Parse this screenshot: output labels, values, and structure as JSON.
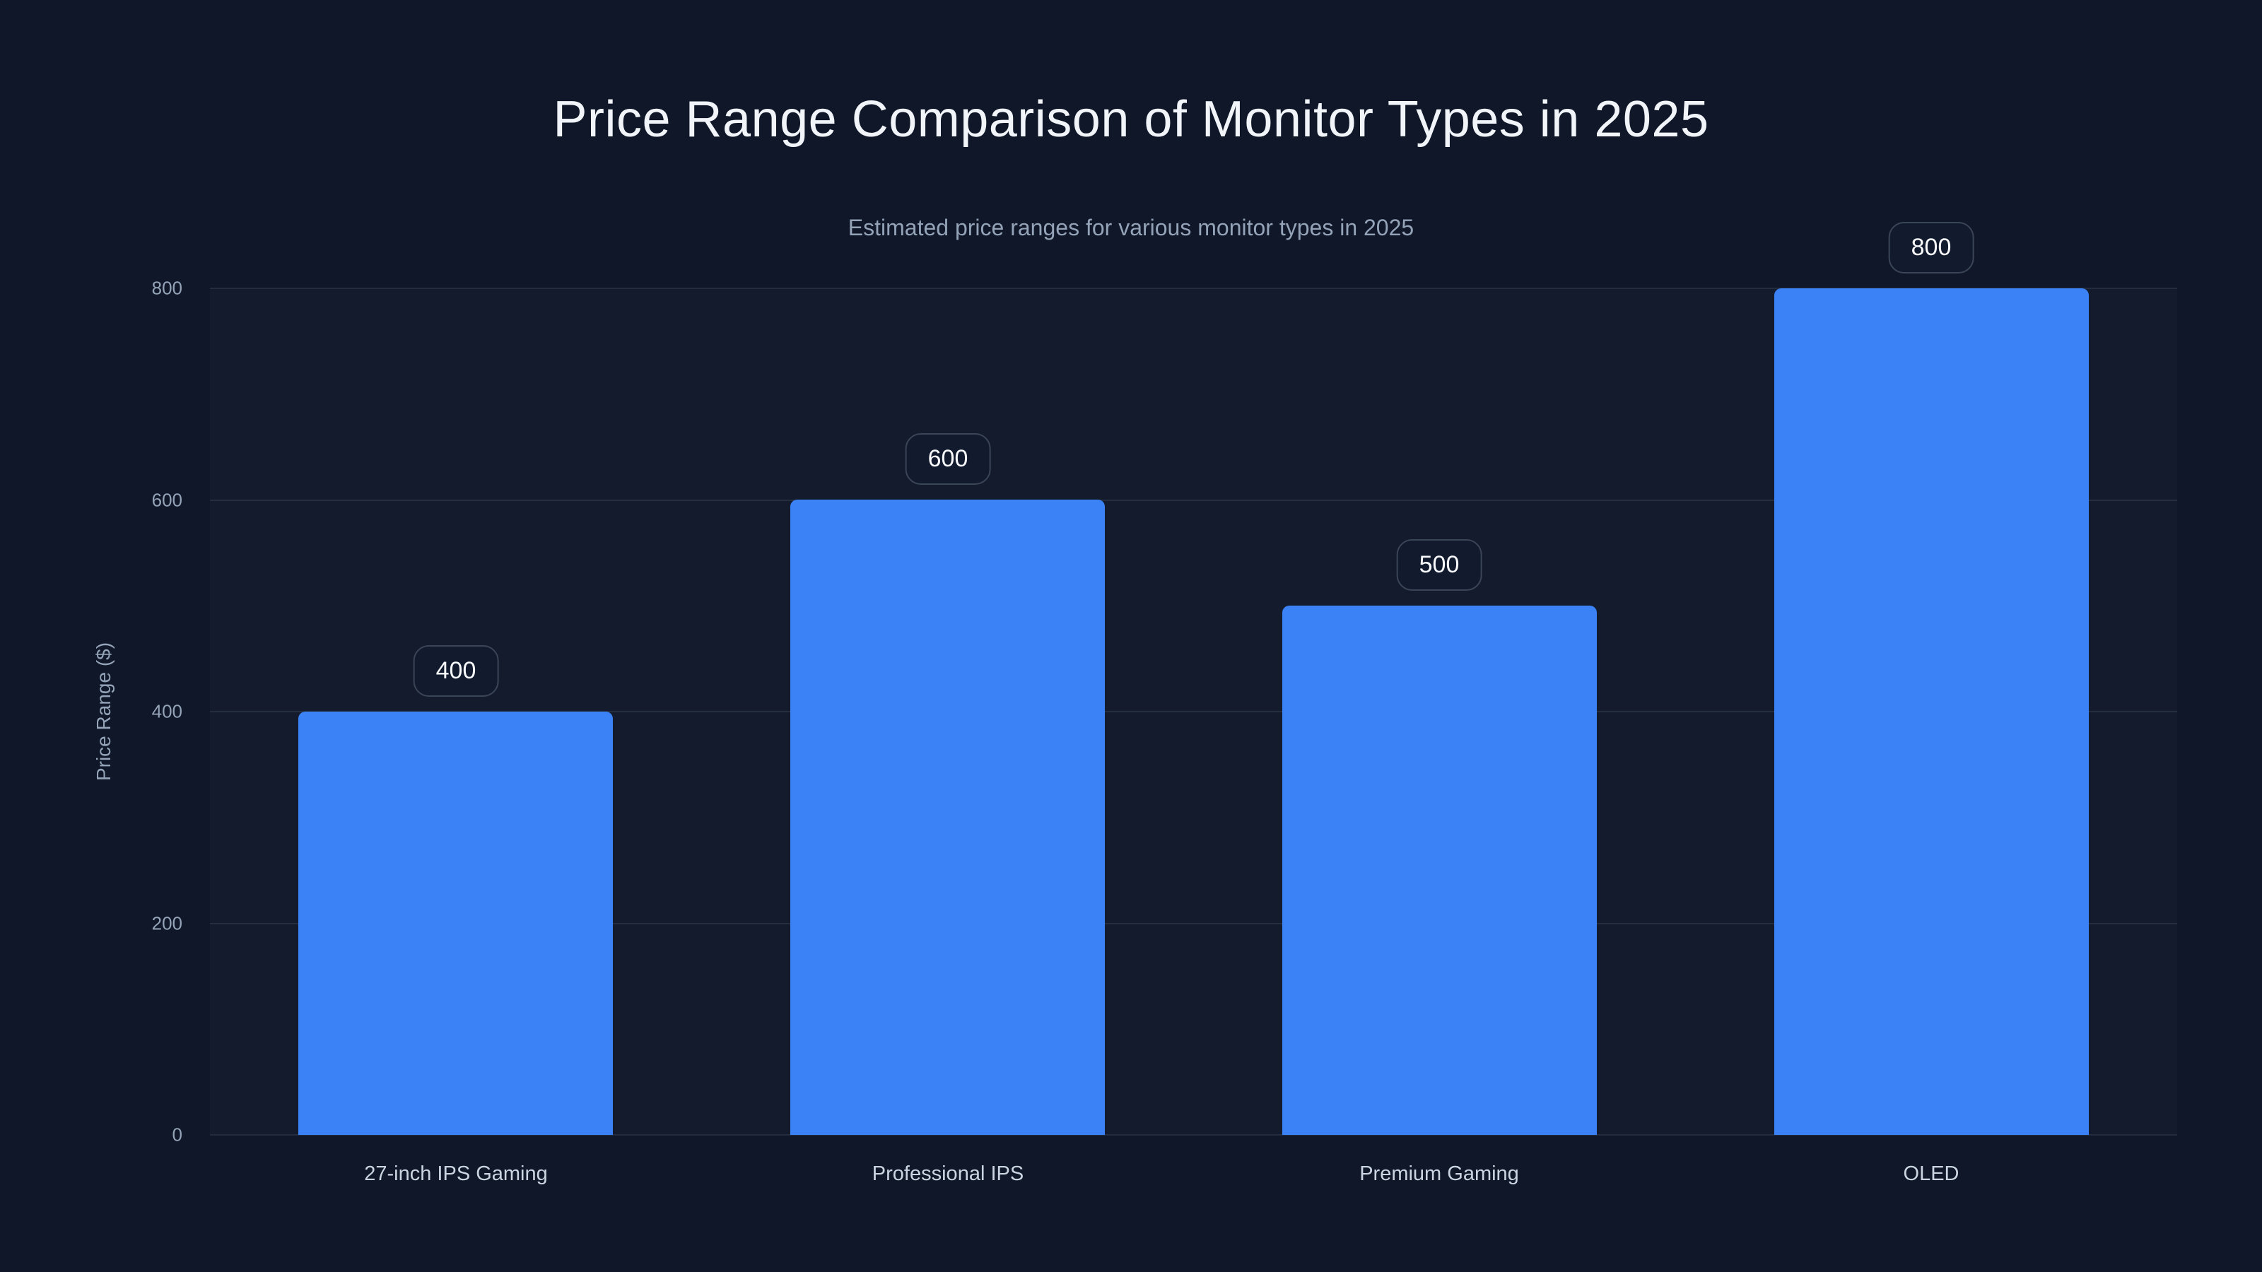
{
  "page": {
    "background_color": "#0f1728"
  },
  "chart_data": {
    "type": "bar",
    "title": "Price Range Comparison of Monitor Types in 2025",
    "subtitle": "Estimated price ranges for various monitor types in 2025",
    "xlabel": "",
    "ylabel": "Price Range ($)",
    "categories": [
      "27-inch IPS Gaming",
      "Professional IPS",
      "Premium Gaming",
      "OLED"
    ],
    "values": [
      400,
      600,
      500,
      800
    ],
    "value_labels": [
      "400",
      "600",
      "500",
      "800"
    ],
    "yticks": [
      0,
      200,
      400,
      600,
      800
    ],
    "ytick_labels": [
      "0",
      "200",
      "400",
      "600",
      "800"
    ],
    "ylim": [
      0,
      800
    ],
    "grid": "horizontal",
    "legend_position": "none",
    "colors": {
      "bar": "#3b82f6",
      "background": "#0f1728",
      "gridline": "rgba(148,163,184,0.14)",
      "title_text": "#f1f5f9",
      "subtitle_text": "#94a3b8",
      "tick_text": "#94a3b8",
      "category_text": "#cbd5e1",
      "badge_border": "#3a4557",
      "badge_text": "#f8fafc"
    }
  }
}
